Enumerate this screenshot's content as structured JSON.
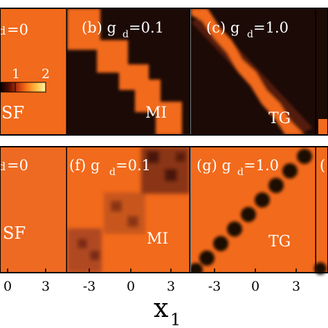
{
  "colors": {
    "orange": "#f26a1b",
    "dark": "#1c0a06",
    "mid": "#a83d1c",
    "frame": "#000000"
  },
  "colorbar": {
    "tick_1": "1",
    "tick_2": "2",
    "stops": [
      "#000000",
      "#5a0d00",
      "#c43a10",
      "#ff7a1a",
      "#ffc044",
      "#fff3a8"
    ]
  },
  "top_row": {
    "panels": [
      {
        "label_prefix": "d",
        "label_value": "=0",
        "phase": "SF"
      },
      {
        "label_prefix": "(b) g",
        "label_sub": "d",
        "label_value": "=0.1",
        "phase": "MI"
      },
      {
        "label_prefix": "(c) g",
        "label_sub": "d",
        "label_value": "=1.0",
        "phase": "TG"
      }
    ]
  },
  "bottom_row": {
    "panels": [
      {
        "label_prefix": "d",
        "label_value": "=0",
        "phase": "SF"
      },
      {
        "label_prefix": "(f) g",
        "label_sub": "d",
        "label_value": "=0.1",
        "phase": "MI"
      },
      {
        "label_prefix": "(g) g",
        "label_sub": "d",
        "label_value": "=1.0",
        "phase": "TG"
      },
      {
        "label_prefix": "("
      }
    ]
  },
  "x_axis": {
    "tick_labels": [
      "0",
      "3",
      "-3",
      "0",
      "3",
      "-3",
      "0",
      "3"
    ],
    "label_main": "x",
    "label_sub": "1"
  }
}
